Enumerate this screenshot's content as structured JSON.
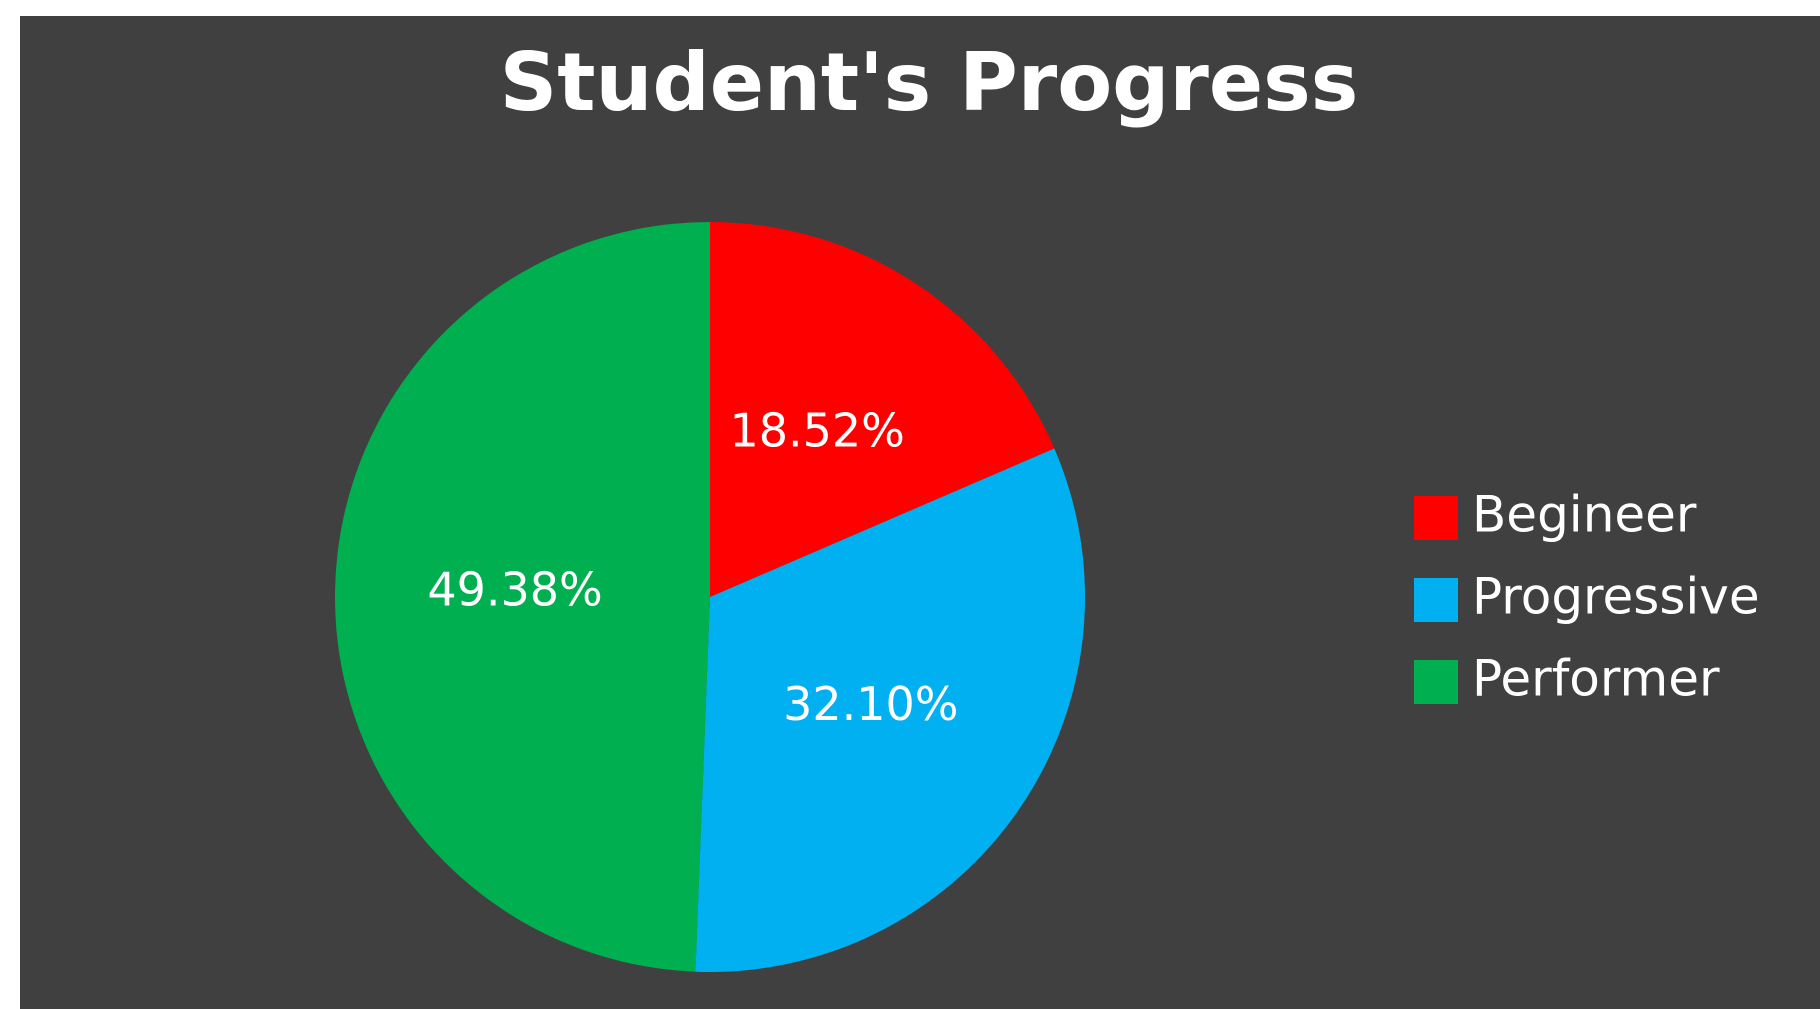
{
  "chart_data": {
    "type": "pie",
    "title": "Student's Progress",
    "categories": [
      "Begineer",
      "Progressive",
      "Performer"
    ],
    "values": [
      18.52,
      32.1,
      49.38
    ],
    "value_labels": [
      "18.52%",
      "32.10%",
      "49.38%"
    ],
    "colors": [
      "#ff0000",
      "#00b0f0",
      "#00b050"
    ],
    "legend": "right"
  }
}
